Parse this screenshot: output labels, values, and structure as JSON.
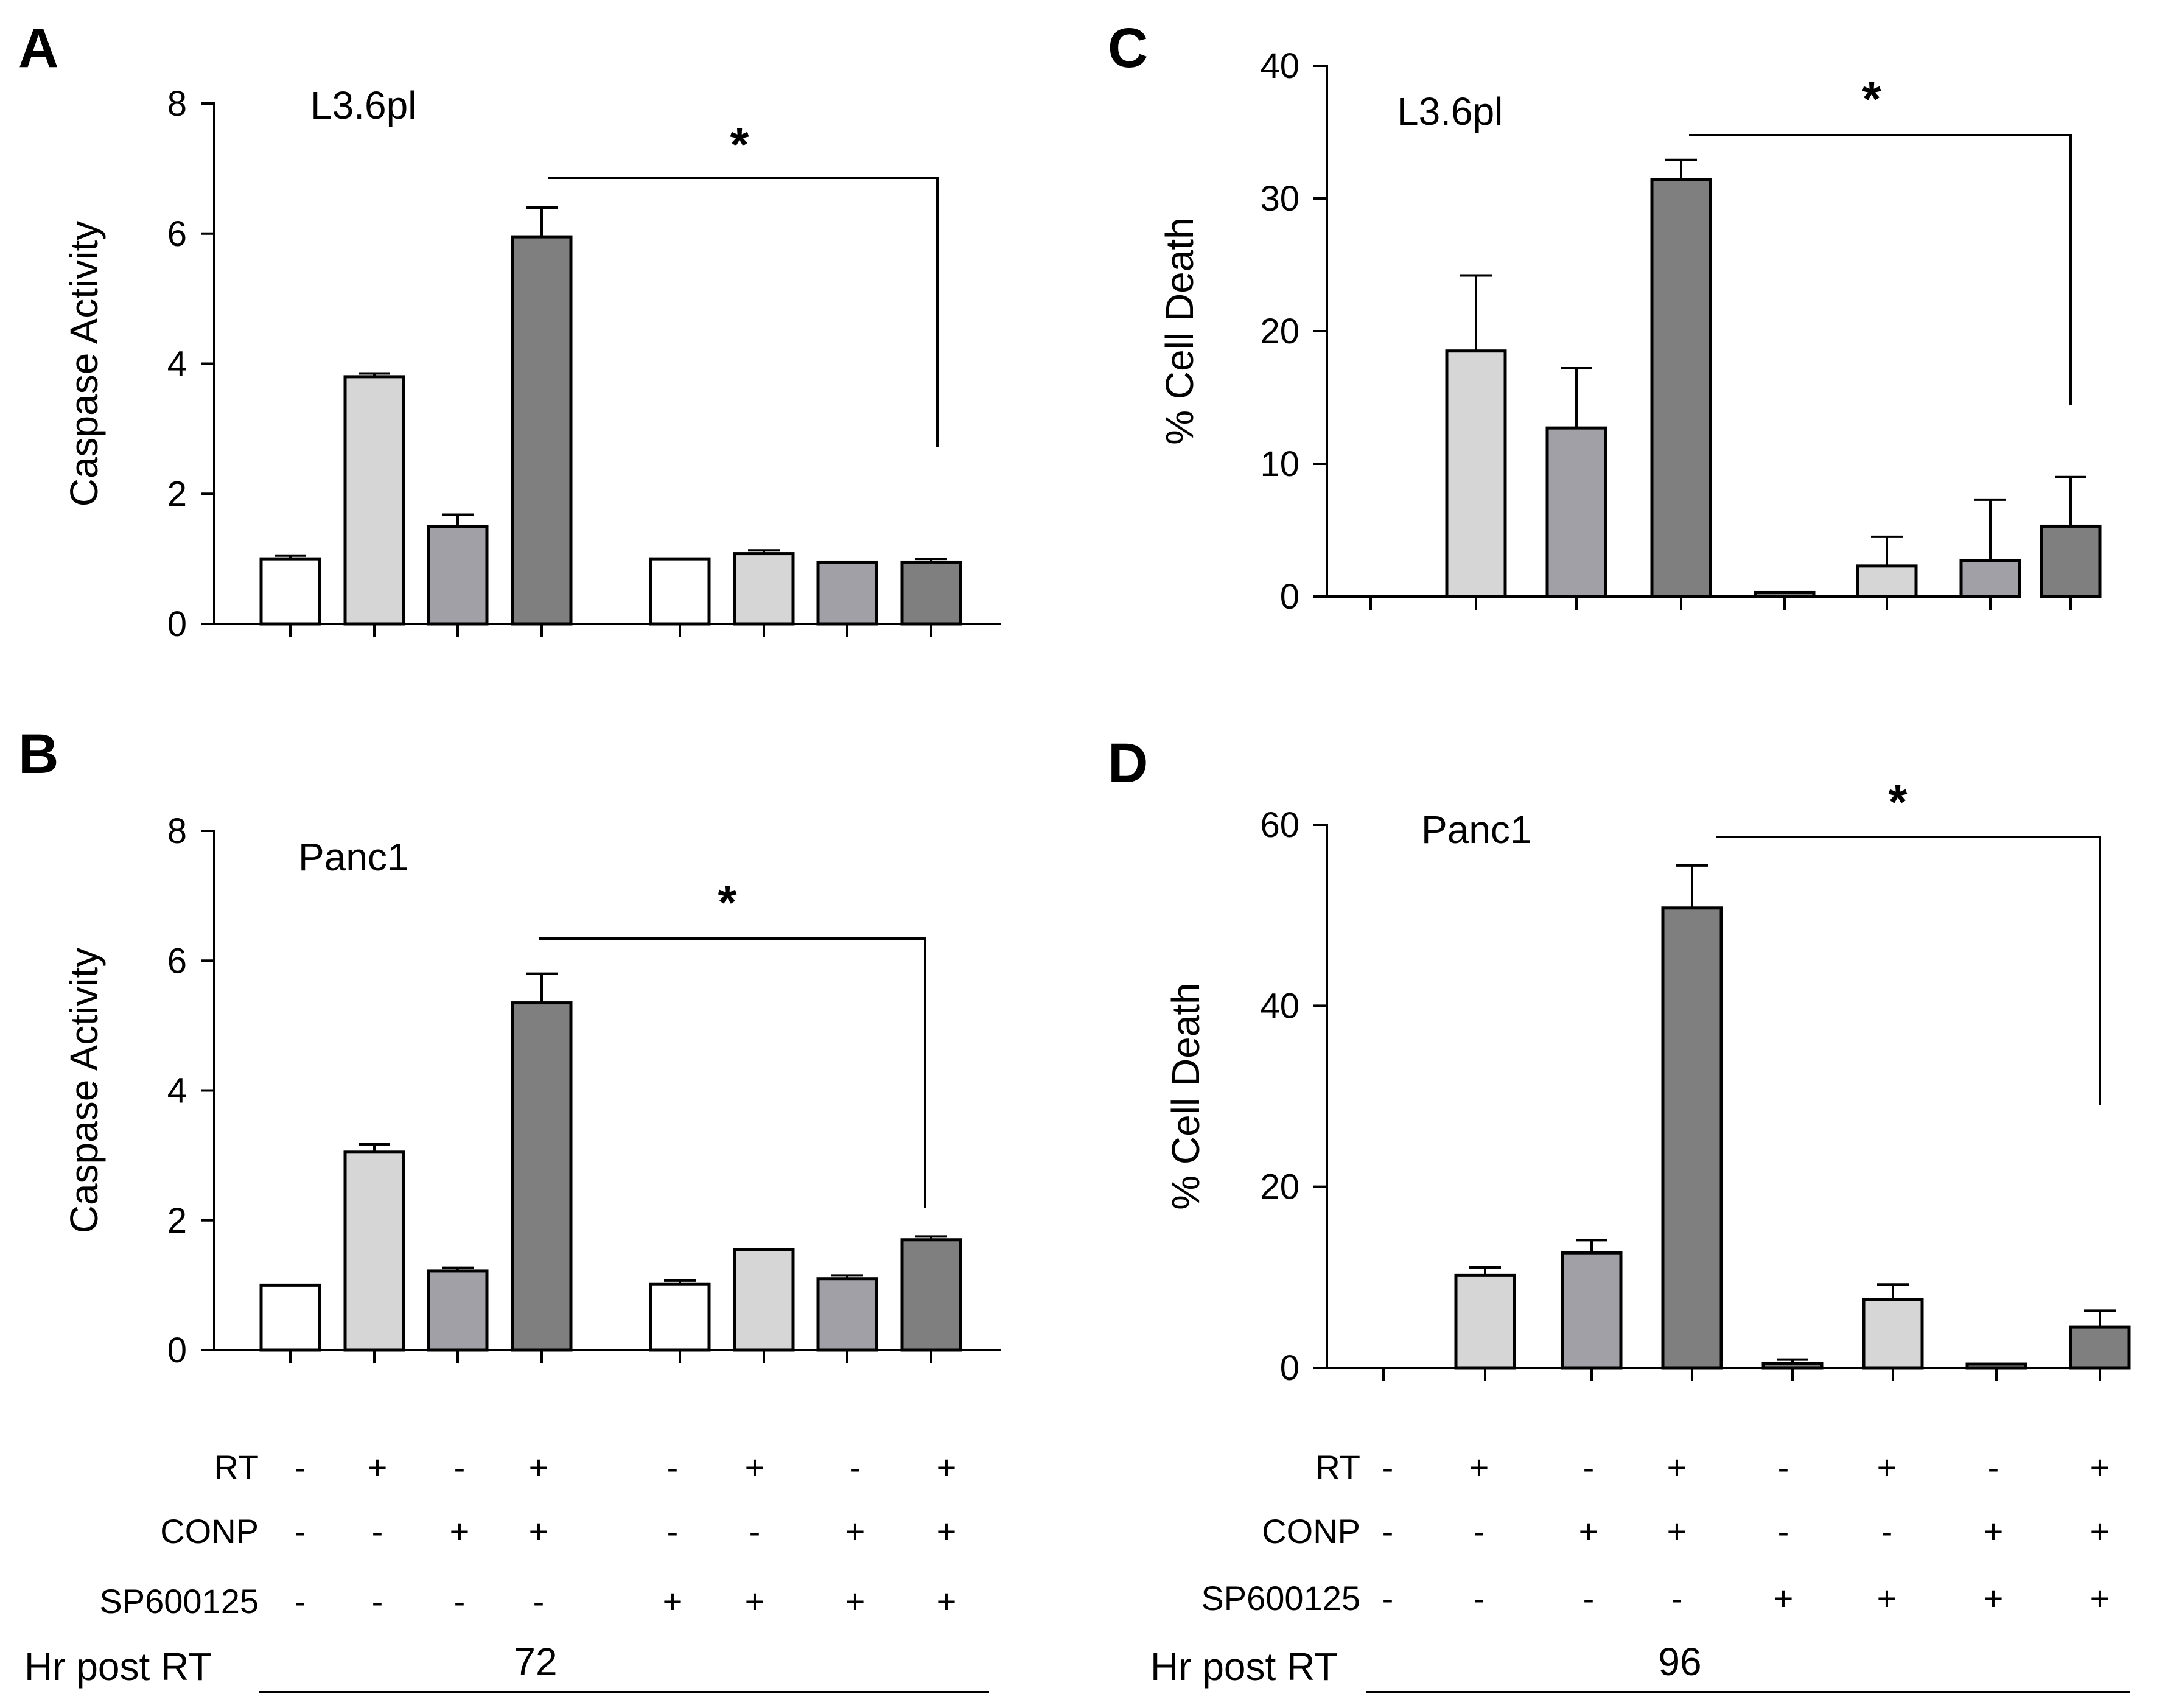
{
  "panels": [
    "A",
    "B",
    "C",
    "D"
  ],
  "chart_data": [
    {
      "panel": "A",
      "type": "bar",
      "title": "L3.6pl",
      "ylabel": "Caspase Activity",
      "xlabel": "",
      "ylim": [
        0,
        8
      ],
      "yticks": [
        0,
        2,
        4,
        6,
        8
      ],
      "values": [
        1.0,
        3.8,
        1.5,
        5.95,
        1.0,
        1.08,
        0.95,
        0.95
      ],
      "errors": [
        0.05,
        0.05,
        0.18,
        0.45,
        0.0,
        0.05,
        0.0,
        0.05
      ],
      "colors": [
        "#ffffff",
        "#d6d6d6",
        "#a0a0a6",
        "#7f7f7f",
        "#ffffff",
        "#d6d6d6",
        "#a0a0a6",
        "#7f7f7f"
      ],
      "significance": {
        "label": "*",
        "from": 3,
        "to": 7
      }
    },
    {
      "panel": "B",
      "type": "bar",
      "title": "Panc1",
      "ylabel": "Caspase Activity",
      "xlabel": "",
      "ylim": [
        0,
        8
      ],
      "yticks": [
        0,
        2,
        4,
        6,
        8
      ],
      "values": [
        1.0,
        3.05,
        1.22,
        5.35,
        1.02,
        1.55,
        1.1,
        1.7
      ],
      "errors": [
        0.0,
        0.12,
        0.05,
        0.45,
        0.05,
        0.0,
        0.05,
        0.05
      ],
      "colors": [
        "#ffffff",
        "#d6d6d6",
        "#a0a0a6",
        "#7f7f7f",
        "#ffffff",
        "#d6d6d6",
        "#a0a0a6",
        "#7f7f7f"
      ],
      "significance": {
        "label": "*",
        "from": 3,
        "to": 7
      }
    },
    {
      "panel": "C",
      "type": "bar",
      "title": "L3.6pl",
      "ylabel": "% Cell Death",
      "xlabel": "",
      "ylim": [
        0,
        40
      ],
      "yticks": [
        0,
        10,
        20,
        30,
        40
      ],
      "values": [
        0,
        18.5,
        12.7,
        31.4,
        0.3,
        2.3,
        2.7,
        5.3
      ],
      "errors": [
        0,
        5.7,
        4.5,
        1.5,
        0,
        2.2,
        4.6,
        3.7
      ],
      "colors": [
        "#ffffff",
        "#d6d6d6",
        "#a0a0a6",
        "#7f7f7f",
        "#7f7f7f",
        "#d6d6d6",
        "#a0a0a6",
        "#7f7f7f"
      ],
      "significance": {
        "label": "*",
        "from": 3,
        "to": 7
      }
    },
    {
      "panel": "D",
      "type": "bar",
      "title": "Panc1",
      "ylabel": "% Cell Death",
      "xlabel": "",
      "ylim": [
        0,
        60
      ],
      "yticks": [
        0,
        20,
        40,
        60
      ],
      "values": [
        0,
        10.2,
        12.7,
        50.8,
        0.5,
        7.5,
        0.4,
        4.5
      ],
      "errors": [
        0,
        0.9,
        1.4,
        4.7,
        0.4,
        1.7,
        0,
        1.8
      ],
      "colors": [
        "#ffffff",
        "#d6d6d6",
        "#a0a0a6",
        "#7f7f7f",
        "#7f7f7f",
        "#d6d6d6",
        "#a0a0a6",
        "#7f7f7f"
      ],
      "significance": {
        "label": "*",
        "from": 3,
        "to": 7
      }
    }
  ],
  "conditions": {
    "left": {
      "rows": [
        {
          "label": "RT",
          "signs": [
            "-",
            "+",
            "-",
            "+",
            "-",
            "+",
            "-",
            "+"
          ]
        },
        {
          "label": "CONP",
          "signs": [
            "-",
            "-",
            "+",
            "+",
            "-",
            "-",
            "+",
            "+"
          ]
        },
        {
          "label": "SP600125",
          "signs": [
            "-",
            "-",
            "-",
            "-",
            "+",
            "+",
            "+",
            "+"
          ]
        }
      ],
      "hr_label": "Hr post RT",
      "hr_value": "72"
    },
    "right": {
      "rows": [
        {
          "label": "RT",
          "signs": [
            "-",
            "+",
            "-",
            "+",
            "-",
            "+",
            "-",
            "+"
          ]
        },
        {
          "label": "CONP",
          "signs": [
            "-",
            "-",
            "+",
            "+",
            "-",
            "-",
            "+",
            "+"
          ]
        },
        {
          "label": "SP600125",
          "signs": [
            "-",
            "-",
            "-",
            "-",
            "+",
            "+",
            "+",
            "+"
          ]
        }
      ],
      "hr_label": "Hr post RT",
      "hr_value": "96"
    }
  }
}
